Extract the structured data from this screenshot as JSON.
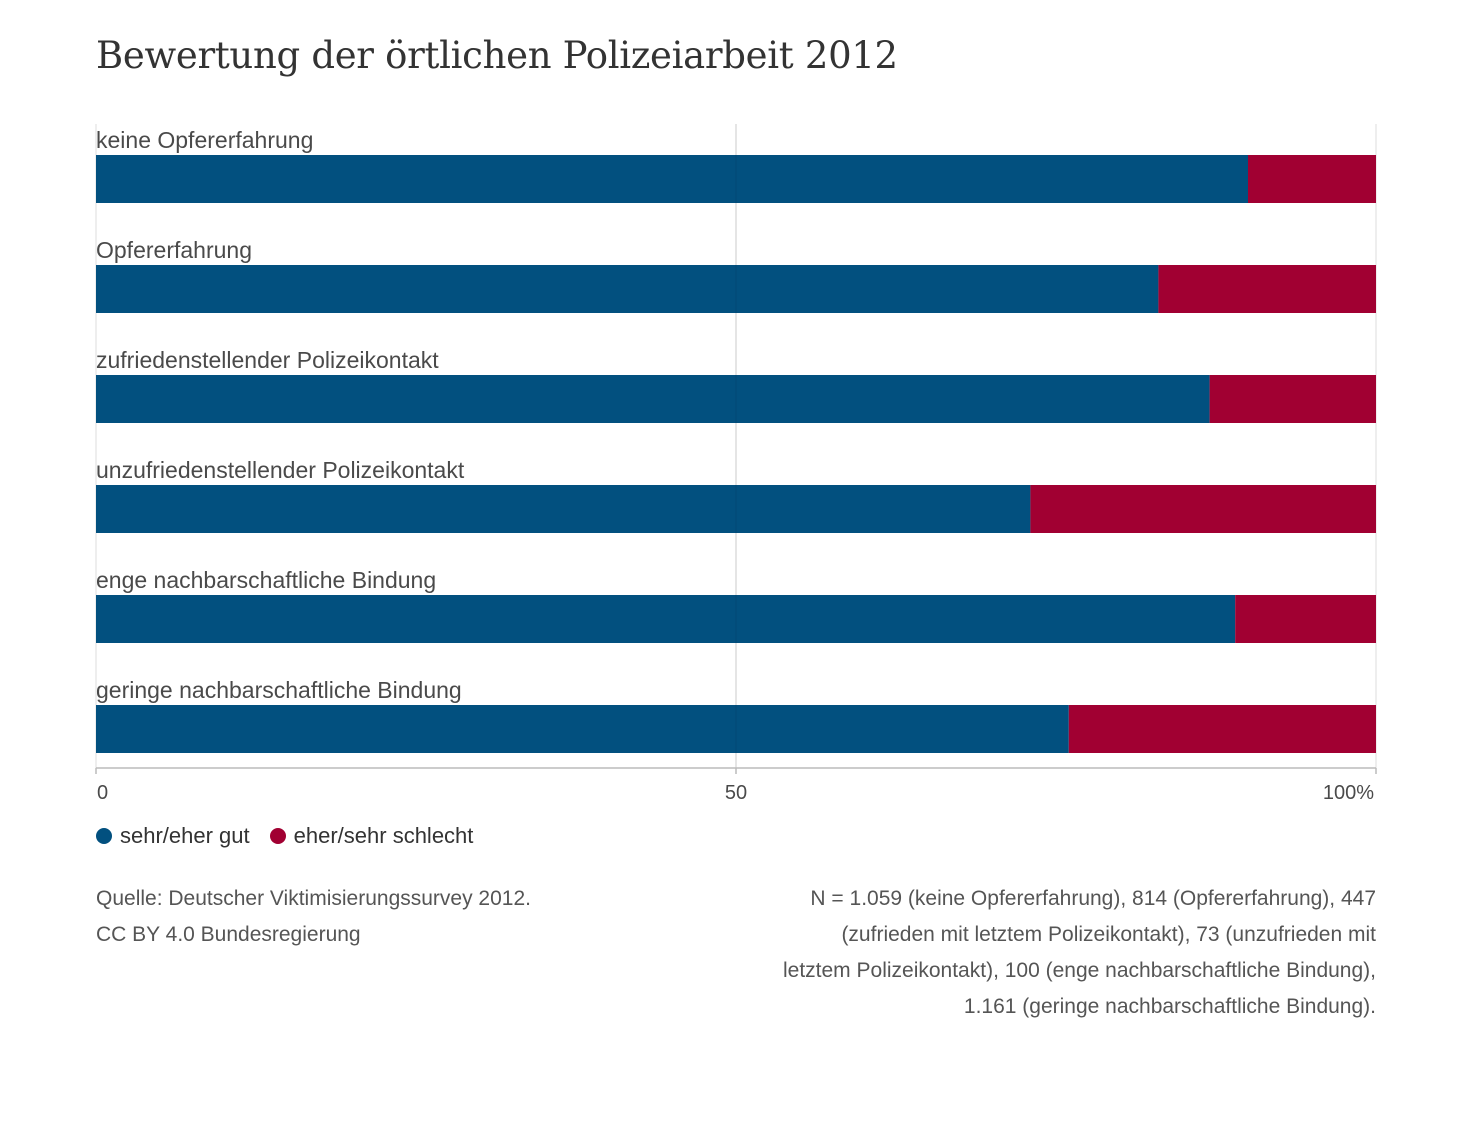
{
  "chart_data": {
    "type": "bar",
    "orientation": "horizontal",
    "stacked": true,
    "title": "Bewertung der örtlichen Polizeiarbeit 2012",
    "categories": [
      "keine Opfererfahrung",
      "Opfererfahrung",
      "zufriedenstellender Polizeikontakt",
      "unzufriedenstellender Polizeikontakt",
      "enge nachbarschaftliche Bindung",
      "geringe nachbarschaftliche Bindung"
    ],
    "series": [
      {
        "name": "sehr/eher gut",
        "color": "#02507f",
        "values": [
          90,
          83,
          87,
          73,
          89,
          76
        ]
      },
      {
        "name": "eher/sehr schlecht",
        "color": "#a10032",
        "values": [
          10,
          17,
          13,
          27,
          11,
          24
        ]
      }
    ],
    "xlim": [
      0,
      100
    ],
    "x_ticks": [
      {
        "value": 0,
        "label": "0"
      },
      {
        "value": 50,
        "label": "50"
      },
      {
        "value": 100,
        "label": "100%"
      }
    ],
    "grid": true,
    "legend": "bottom-left"
  },
  "footer": {
    "source_lines": [
      "Quelle: Deutscher Viktimisierungssurvey 2012.",
      "CC BY 4.0 Bundesregierung"
    ],
    "note_lines": [
      "N = 1.059 (keine Opfererfahrung), 814 (Opfererfahrung), 447",
      "(zufrieden mit letztem Polizeikontakt), 73 (unzufrieden mit",
      "letztem Polizeikontakt), 100 (enge nachbarschaftliche Bindung),",
      "1.161 (geringe nachbarschaftliche Bindung)."
    ]
  }
}
